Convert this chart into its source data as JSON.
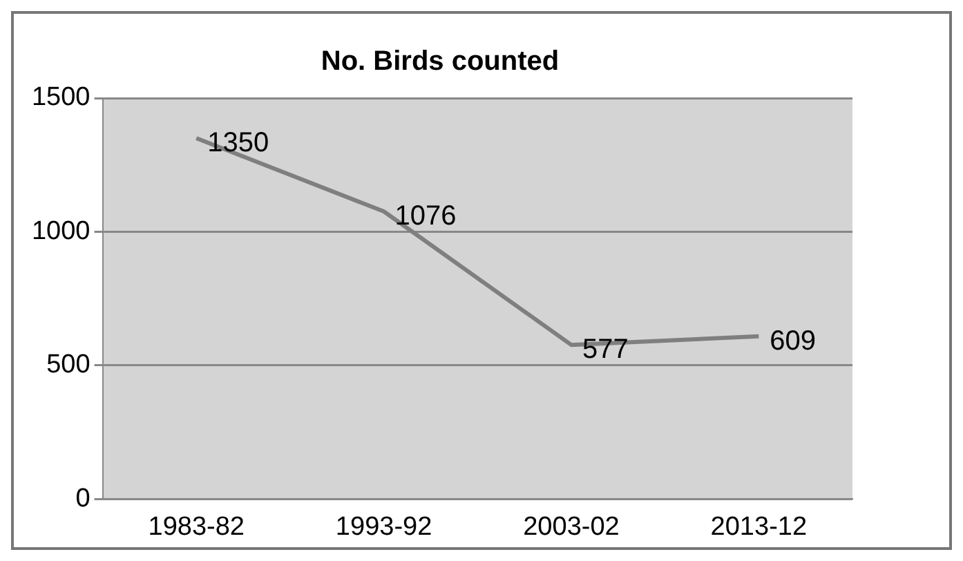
{
  "chart_data": {
    "type": "line",
    "title": "No. Birds counted",
    "categories": [
      "1983-82",
      "1993-92",
      "2003-02",
      "2013-12"
    ],
    "series": [
      {
        "color": "#7f7f7f",
        "values": [
          1350,
          1076,
          577,
          609
        ]
      }
    ],
    "ylim": [
      0,
      1500
    ],
    "yticks": [
      0,
      500,
      1000,
      1500
    ],
    "grid": "y",
    "legend": false,
    "marker": "none",
    "line_style": "solid",
    "data_labels": true
  }
}
